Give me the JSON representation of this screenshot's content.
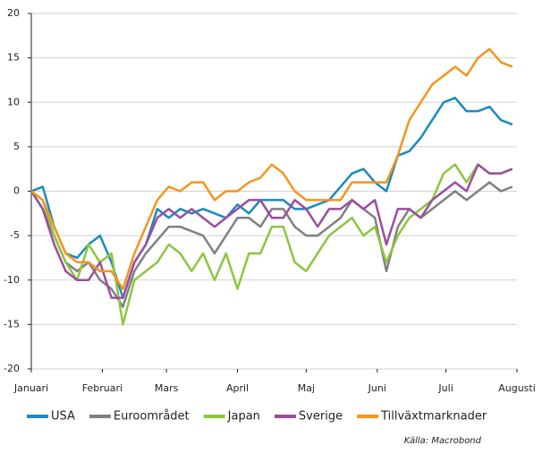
{
  "chart_data": {
    "type": "line",
    "x": [
      0,
      5,
      10,
      15,
      20,
      25,
      30,
      35,
      40,
      45,
      50,
      55,
      60,
      65,
      70,
      75,
      80,
      85,
      90,
      95,
      100,
      105,
      110,
      115,
      120,
      125,
      130,
      135,
      140,
      145,
      150,
      155,
      160,
      165,
      170,
      175,
      180,
      185,
      190,
      195,
      200,
      205,
      210
    ],
    "series": [
      {
        "name": "USA",
        "color": "#1a8ac0",
        "values": [
          0,
          0.5,
          -4,
          -7,
          -7.5,
          -6,
          -5,
          -8,
          -12,
          -8,
          -6,
          -2,
          -3,
          -2,
          -2.5,
          -2,
          -2.5,
          -3,
          -1.5,
          -2.5,
          -1,
          -1,
          -1,
          -2,
          -2,
          -1.5,
          -1,
          0.5,
          2,
          2.5,
          1,
          0,
          4,
          4.5,
          6,
          8,
          10,
          10.5,
          9,
          9,
          9.5,
          8,
          7.5
        ]
      },
      {
        "name": "Euroområdet",
        "color": "#808080",
        "values": [
          0,
          -2,
          -5,
          -8,
          -9,
          -8,
          -10,
          -11,
          -13,
          -9,
          -7,
          -5.5,
          -4,
          -4,
          -4.5,
          -5,
          -7,
          -5,
          -3,
          -3,
          -4,
          -2,
          -2,
          -4,
          -5,
          -5,
          -4,
          -3,
          -1,
          -2,
          -3,
          -9,
          -4,
          -2,
          -3,
          -2,
          -1,
          0,
          -1,
          0,
          1,
          0,
          0.5
        ]
      },
      {
        "name": "Japan",
        "color": "#8dc63f",
        "values": [
          0,
          -1,
          -5,
          -8,
          -10,
          -6,
          -8,
          -7,
          -15,
          -10,
          -9,
          -8,
          -6,
          -7,
          -9,
          -7,
          -10,
          -7,
          -11,
          -7,
          -7,
          -4,
          -4,
          -8,
          -9,
          -7,
          -5,
          -4,
          -3,
          -5,
          -4,
          -8,
          -5,
          -3,
          -2,
          -1,
          2,
          3,
          1,
          3,
          2,
          2,
          2.5
        ]
      },
      {
        "name": "Sverige",
        "color": "#9b4e9e",
        "values": [
          0,
          -2,
          -6,
          -9,
          -10,
          -10,
          -8,
          -12,
          -12,
          -8,
          -6,
          -3,
          -2,
          -3,
          -2,
          -3,
          -4,
          -3,
          -2,
          -1,
          -1,
          -3,
          -3,
          -1,
          -2,
          -4,
          -2,
          -2,
          -1,
          -2,
          -1,
          -6,
          -2,
          -2,
          -3,
          -1,
          0,
          1,
          0,
          3,
          2,
          2,
          2.5
        ]
      },
      {
        "name": "Tillväxtmarknader",
        "color": "#f7941d",
        "values": [
          0,
          -1,
          -4,
          -7,
          -8,
          -8,
          -9,
          -9,
          -11,
          -7,
          -4,
          -1,
          0.5,
          0,
          1,
          1,
          -1,
          0,
          0,
          1,
          1.5,
          3,
          2,
          0,
          -1,
          -1,
          -1,
          -1,
          1,
          1,
          1,
          1,
          4,
          8,
          10,
          12,
          13,
          14,
          13,
          15,
          16,
          14.5,
          14
        ]
      }
    ],
    "xlim": [
      0,
      212
    ],
    "xticks": [
      {
        "value": 0,
        "label": "Januari"
      },
      {
        "value": 31,
        "label": "Februari"
      },
      {
        "value": 59,
        "label": "Mars"
      },
      {
        "value": 90,
        "label": "April"
      },
      {
        "value": 120,
        "label": "Maj"
      },
      {
        "value": 151,
        "label": "Juni"
      },
      {
        "value": 181,
        "label": "Juli"
      },
      {
        "value": 212,
        "label": "Augusti"
      }
    ],
    "ylim": [
      -20,
      20
    ],
    "yticks": [
      -20,
      -15,
      -10,
      -5,
      0,
      5,
      10,
      15,
      20
    ],
    "grid": true,
    "source": "Källa: Macrobond"
  }
}
